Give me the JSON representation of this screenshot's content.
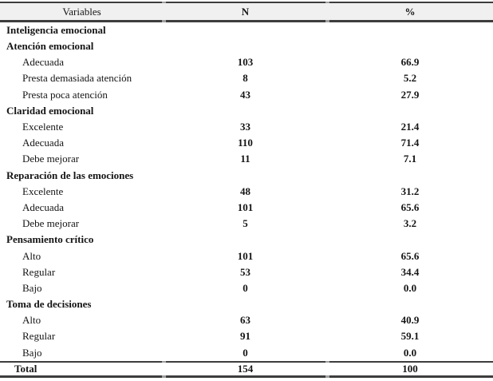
{
  "table": {
    "header": {
      "variables": "Variables",
      "n": "N",
      "pct": "%"
    },
    "rows": [
      {
        "type": "section",
        "label": "Inteligencia emocional",
        "n": "",
        "pct": ""
      },
      {
        "type": "section",
        "label": "Atención emocional",
        "n": "",
        "pct": ""
      },
      {
        "type": "item",
        "label": "Adecuada",
        "n": "103",
        "pct": "66.9"
      },
      {
        "type": "item",
        "label": "Presta demasiada atención",
        "n": "8",
        "pct": "5.2"
      },
      {
        "type": "item",
        "label": "Presta poca atención",
        "n": "43",
        "pct": "27.9"
      },
      {
        "type": "section",
        "label": "Claridad emocional",
        "n": "",
        "pct": ""
      },
      {
        "type": "item",
        "label": "Excelente",
        "n": "33",
        "pct": "21.4"
      },
      {
        "type": "item",
        "label": "Adecuada",
        "n": "110",
        "pct": "71.4"
      },
      {
        "type": "item",
        "label": "Debe mejorar",
        "n": "11",
        "pct": "7.1"
      },
      {
        "type": "section",
        "label": "Reparación de las emociones",
        "n": "",
        "pct": ""
      },
      {
        "type": "item",
        "label": "Excelente",
        "n": "48",
        "pct": "31.2"
      },
      {
        "type": "item",
        "label": "Adecuada",
        "n": "101",
        "pct": "65.6"
      },
      {
        "type": "item",
        "label": "Debe mejorar",
        "n": "5",
        "pct": "3.2"
      },
      {
        "type": "section",
        "label": "Pensamiento crítico",
        "n": "",
        "pct": ""
      },
      {
        "type": "item",
        "label": "Alto",
        "n": "101",
        "pct": "65.6"
      },
      {
        "type": "item",
        "label": "Regular",
        "n": "53",
        "pct": "34.4"
      },
      {
        "type": "item",
        "label": "Bajo",
        "n": "0",
        "pct": "0.0"
      },
      {
        "type": "section",
        "label": "Toma de decisiones",
        "n": "",
        "pct": ""
      },
      {
        "type": "item",
        "label": "Alto",
        "n": "63",
        "pct": "40.9"
      },
      {
        "type": "item",
        "label": "Regular",
        "n": "91",
        "pct": "59.1"
      },
      {
        "type": "item",
        "label": "Bajo",
        "n": "0",
        "pct": "0.0"
      }
    ],
    "total": {
      "label": "Total",
      "n": "154",
      "pct": "100"
    }
  },
  "chart_data": {
    "type": "table",
    "title": "",
    "columns": [
      "Variables",
      "N",
      "%"
    ],
    "rows": [
      [
        "Inteligencia emocional",
        null,
        null
      ],
      [
        "Atención emocional",
        null,
        null
      ],
      [
        "Adecuada",
        103,
        66.9
      ],
      [
        "Presta demasiada atención",
        8,
        5.2
      ],
      [
        "Presta poca atención",
        43,
        27.9
      ],
      [
        "Claridad emocional",
        null,
        null
      ],
      [
        "Excelente",
        33,
        21.4
      ],
      [
        "Adecuada",
        110,
        71.4
      ],
      [
        "Debe mejorar",
        11,
        7.1
      ],
      [
        "Reparación de las emociones",
        null,
        null
      ],
      [
        "Excelente",
        48,
        31.2
      ],
      [
        "Adecuada",
        101,
        65.6
      ],
      [
        "Debe mejorar",
        5,
        3.2
      ],
      [
        "Pensamiento crítico",
        null,
        null
      ],
      [
        "Alto",
        101,
        65.6
      ],
      [
        "Regular",
        53,
        34.4
      ],
      [
        "Bajo",
        0,
        0.0
      ],
      [
        "Toma de decisiones",
        null,
        null
      ],
      [
        "Alto",
        63,
        40.9
      ],
      [
        "Regular",
        91,
        59.1
      ],
      [
        "Bajo",
        0,
        0.0
      ],
      [
        "Total",
        154,
        100
      ]
    ]
  }
}
